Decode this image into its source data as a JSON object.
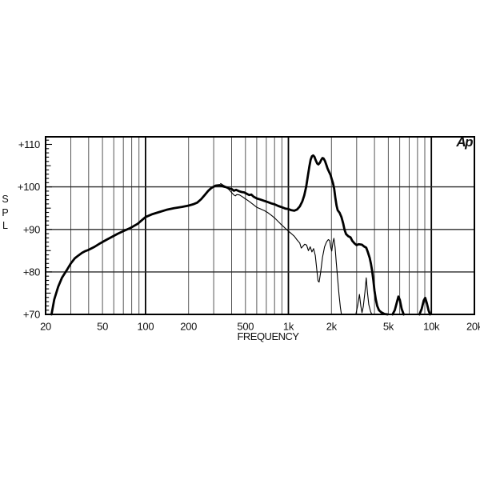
{
  "colors": {
    "foreground": "#000000",
    "background": "#ffffff",
    "grid_minor": "#575757",
    "grid_major": "#000000",
    "grid_horizontal": "#2b2b2b"
  },
  "chart_data": {
    "type": "line",
    "title": "",
    "xlabel": "FREQUENCY",
    "ylabel": "SPL",
    "logo": "Ap",
    "x_scale": "log",
    "x_range_hz": [
      20,
      20000
    ],
    "y_range_db": [
      70,
      111.8
    ],
    "grid": "on",
    "legend": "none",
    "x_tick_labels": [
      {
        "f": 20,
        "label": "20"
      },
      {
        "f": 50,
        "label": "50"
      },
      {
        "f": 100,
        "label": "100"
      },
      {
        "f": 200,
        "label": "200"
      },
      {
        "f": 500,
        "label": "500"
      },
      {
        "f": 1000,
        "label": "1k"
      },
      {
        "f": 2000,
        "label": "2k"
      },
      {
        "f": 5000,
        "label": "5k"
      },
      {
        "f": 10000,
        "label": "10k"
      },
      {
        "f": 20000,
        "label": "20k"
      }
    ],
    "y_tick_labels": [
      {
        "db": 110,
        "label": "+110"
      },
      {
        "db": 100,
        "label": "+100"
      },
      {
        "db": 90,
        "label": "+90"
      },
      {
        "db": 80,
        "label": "+80"
      },
      {
        "db": 70,
        "label": "+70"
      }
    ],
    "x_gridlines_hz": [
      30,
      40,
      50,
      60,
      70,
      80,
      90,
      100,
      200,
      300,
      400,
      500,
      600,
      700,
      800,
      900,
      1000,
      2000,
      3000,
      4000,
      5000,
      6000,
      7000,
      8000,
      9000,
      10000
    ],
    "x_major_gridlines_hz": [
      100,
      1000,
      10000
    ],
    "y_gridlines_db": [
      80,
      90,
      100
    ],
    "y_minor_tick_step_db": 1,
    "series": [
      {
        "name": "response-main",
        "style": "thick",
        "stroke_width": 2.8,
        "segments": [
          [
            [
              22,
              70
            ],
            [
              23,
              73.5
            ],
            [
              24.5,
              76.5
            ],
            [
              26,
              78.6
            ],
            [
              28,
              80.3
            ],
            [
              30,
              82
            ],
            [
              32,
              83.2
            ],
            [
              34,
              83.9
            ],
            [
              36,
              84.5
            ],
            [
              38,
              84.9
            ],
            [
              40,
              85.2
            ],
            [
              44,
              85.9
            ],
            [
              48,
              86.7
            ],
            [
              53,
              87.5
            ],
            [
              58,
              88.2
            ],
            [
              64,
              89
            ],
            [
              70,
              89.6
            ],
            [
              78,
              90.3
            ],
            [
              88,
              91.3
            ],
            [
              100,
              92.9
            ],
            [
              112,
              93.6
            ],
            [
              125,
              94.1
            ],
            [
              140,
              94.6
            ],
            [
              158,
              95
            ],
            [
              180,
              95.3
            ],
            [
              200,
              95.6
            ],
            [
              215,
              95.9
            ],
            [
              230,
              96.3
            ],
            [
              245,
              97.1
            ],
            [
              260,
              98.1
            ],
            [
              275,
              99.1
            ],
            [
              290,
              99.8
            ],
            [
              310,
              100.3
            ],
            [
              330,
              100.4
            ],
            [
              350,
              100.1
            ],
            [
              370,
              99.9
            ],
            [
              385,
              99.6
            ],
            [
              400,
              99.5
            ],
            [
              415,
              99.1
            ],
            [
              430,
              99.3
            ],
            [
              450,
              99
            ],
            [
              470,
              98.8
            ],
            [
              490,
              98.7
            ],
            [
              510,
              98.4
            ],
            [
              530,
              98.1
            ],
            [
              550,
              98.2
            ],
            [
              570,
              97.7
            ],
            [
              600,
              97.3
            ],
            [
              640,
              97
            ],
            [
              680,
              96.7
            ],
            [
              720,
              96.4
            ],
            [
              760,
              96.1
            ],
            [
              800,
              95.9
            ],
            [
              850,
              95.5
            ],
            [
              900,
              95.2
            ],
            [
              950,
              94.9
            ],
            [
              1000,
              94.8
            ],
            [
              1050,
              94.5
            ],
            [
              1100,
              94.4
            ],
            [
              1150,
              94.7
            ],
            [
              1200,
              95.4
            ],
            [
              1250,
              96.6
            ],
            [
              1290,
              98
            ],
            [
              1330,
              100
            ],
            [
              1370,
              102.8
            ],
            [
              1400,
              104.8
            ],
            [
              1430,
              106.4
            ],
            [
              1460,
              107.2
            ],
            [
              1490,
              107.4
            ],
            [
              1520,
              107.1
            ],
            [
              1550,
              106.3
            ],
            [
              1590,
              105.5
            ],
            [
              1620,
              105.3
            ],
            [
              1660,
              105.7
            ],
            [
              1700,
              106.4
            ],
            [
              1730,
              106.8
            ],
            [
              1760,
              106.7
            ],
            [
              1800,
              106.1
            ],
            [
              1840,
              105.2
            ],
            [
              1880,
              104.3
            ],
            [
              1920,
              103.6
            ],
            [
              1970,
              102.8
            ],
            [
              2010,
              101.8
            ],
            [
              2050,
              100.9
            ],
            [
              2090,
              99.6
            ],
            [
              2130,
              97.4
            ],
            [
              2170,
              95.6
            ],
            [
              2210,
              94.5
            ],
            [
              2280,
              93.9
            ],
            [
              2350,
              92.9
            ],
            [
              2420,
              91.3
            ],
            [
              2470,
              89.9
            ],
            [
              2530,
              88.9
            ],
            [
              2620,
              88.4
            ],
            [
              2720,
              88.1
            ],
            [
              2800,
              87.3
            ],
            [
              2900,
              86.7
            ],
            [
              3000,
              86.3
            ],
            [
              3100,
              86.5
            ],
            [
              3270,
              86.4
            ],
            [
              3380,
              86
            ],
            [
              3500,
              85.7
            ],
            [
              3600,
              84.6
            ],
            [
              3700,
              83.3
            ],
            [
              3780,
              81.9
            ],
            [
              3850,
              80.2
            ],
            [
              3930,
              78
            ],
            [
              4000,
              75.6
            ],
            [
              4080,
              73.6
            ],
            [
              4180,
              72
            ],
            [
              4300,
              71
            ],
            [
              4450,
              70.5
            ],
            [
              4700,
              70.1
            ],
            [
              4950,
              70
            ]
          ],
          [
            [
              5350,
              70
            ],
            [
              5550,
              71
            ],
            [
              5750,
              73
            ],
            [
              5880,
              74.2
            ],
            [
              6020,
              73.4
            ],
            [
              6200,
              71.3
            ],
            [
              6400,
              70
            ]
          ],
          [
            [
              8250,
              70
            ],
            [
              8550,
              71.3
            ],
            [
              8850,
              73.3
            ],
            [
              9050,
              73.9
            ],
            [
              9300,
              72.6
            ],
            [
              9550,
              71
            ],
            [
              9800,
              70
            ]
          ]
        ]
      },
      {
        "name": "response-secondary",
        "style": "thin",
        "stroke_width": 1.1,
        "segments": [
          [
            [
              335,
              100.8
            ],
            [
              350,
              100.4
            ],
            [
              365,
              100.1
            ],
            [
              380,
              99.5
            ],
            [
              395,
              98.9
            ],
            [
              405,
              98.5
            ],
            [
              415,
              98.1
            ],
            [
              425,
              97.9
            ],
            [
              435,
              98.2
            ],
            [
              455,
              98.1
            ],
            [
              475,
              97.7
            ],
            [
              495,
              97.3
            ],
            [
              515,
              96.9
            ],
            [
              540,
              96.4
            ],
            [
              570,
              95.8
            ],
            [
              600,
              95.2
            ],
            [
              640,
              94.8
            ],
            [
              680,
              94.4
            ],
            [
              720,
              93.9
            ],
            [
              760,
              93.3
            ],
            [
              800,
              92.7
            ],
            [
              840,
              92
            ],
            [
              880,
              91.3
            ],
            [
              920,
              90.7
            ],
            [
              960,
              90.1
            ],
            [
              1000,
              89.6
            ],
            [
              1050,
              89
            ],
            [
              1100,
              88.4
            ],
            [
              1150,
              87.5
            ],
            [
              1200,
              86.8
            ],
            [
              1230,
              85.6
            ],
            [
              1260,
              86
            ],
            [
              1300,
              86.5
            ],
            [
              1340,
              86.3
            ],
            [
              1380,
              85
            ],
            [
              1420,
              85.9
            ],
            [
              1460,
              84.7
            ],
            [
              1500,
              85.5
            ],
            [
              1540,
              83.9
            ],
            [
              1580,
              80.5
            ],
            [
              1610,
              77.9
            ],
            [
              1640,
              77.6
            ],
            [
              1680,
              79.9
            ],
            [
              1730,
              83.4
            ],
            [
              1790,
              85.9
            ],
            [
              1850,
              87.1
            ],
            [
              1900,
              87.6
            ],
            [
              1940,
              87.4
            ],
            [
              1980,
              85.6
            ],
            [
              2010,
              84.9
            ],
            [
              2050,
              87
            ],
            [
              2080,
              87.9
            ],
            [
              2120,
              85.7
            ],
            [
              2160,
              82.3
            ],
            [
              2210,
              78.3
            ],
            [
              2260,
              74.6
            ],
            [
              2310,
              71.6
            ],
            [
              2350,
              70
            ]
          ],
          [
            [
              2960,
              70
            ],
            [
              3060,
              72.3
            ],
            [
              3140,
              74.7
            ],
            [
              3210,
              72
            ],
            [
              3270,
              70.4
            ],
            [
              3340,
              71.8
            ],
            [
              3430,
              75.3
            ],
            [
              3500,
              78.6
            ],
            [
              3570,
              75.2
            ],
            [
              3650,
              72.3
            ],
            [
              3760,
              70.6
            ],
            [
              3840,
              70
            ]
          ]
        ]
      }
    ]
  }
}
